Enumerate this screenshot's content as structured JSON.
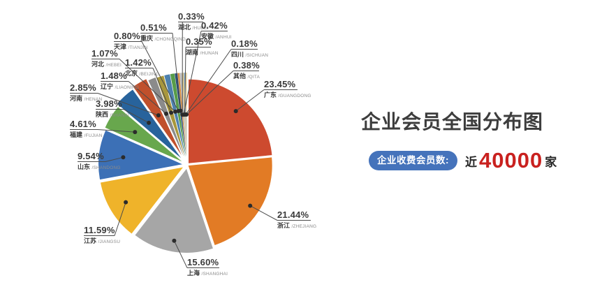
{
  "page": {
    "background": "#ffffff"
  },
  "title": "企业会员全国分布图",
  "badge": {
    "label": "企业收费会员数:",
    "prefix": "近",
    "value": "40000",
    "suffix": "家"
  },
  "chart_data": {
    "type": "pie",
    "title": "企业会员全国分布图",
    "value_unit": "percent",
    "total": 100.0,
    "direction": "clockwise",
    "start_angle": "12-oclock",
    "legend_position": "callout-labels",
    "slices": [
      {
        "name": "广东",
        "roman": "GUANGDONG",
        "value": 23.45,
        "color": "#cd4a2f"
      },
      {
        "name": "浙江",
        "roman": "ZHEJIANG",
        "value": 21.44,
        "color": "#e27b25"
      },
      {
        "name": "上海",
        "roman": "SHANGHAI",
        "value": 15.6,
        "color": "#a6a6a6"
      },
      {
        "name": "江苏",
        "roman": "JIANGSU",
        "value": 11.59,
        "color": "#efb32a"
      },
      {
        "name": "山东",
        "roman": "SHANDONG",
        "value": 9.54,
        "color": "#3c70b6"
      },
      {
        "name": "福建",
        "roman": "FUJIAN",
        "value": 4.61,
        "color": "#68a74d"
      },
      {
        "name": "陕西",
        "roman": "SHANXI",
        "value": 3.98,
        "color": "#28639c"
      },
      {
        "name": "河南",
        "roman": "HENAN",
        "value": 2.85,
        "color": "#c0502c"
      },
      {
        "name": "辽宁",
        "roman": "LIAONING",
        "value": 1.48,
        "color": "#8b8b8b"
      },
      {
        "name": "北京",
        "roman": "BEIJING",
        "value": 1.42,
        "color": "#a8973c"
      },
      {
        "name": "河北",
        "roman": "HEBEI",
        "value": 1.07,
        "color": "#4d80ad"
      },
      {
        "name": "天津",
        "roman": "TIANJIN",
        "value": 0.8,
        "color": "#579c49"
      },
      {
        "name": "重庆",
        "roman": "CHONGQING",
        "value": 0.51,
        "color": "#2a4e7d"
      },
      {
        "name": "湖北",
        "roman": "HUBEI",
        "value": 0.33,
        "color": "#d98a3a"
      },
      {
        "name": "安徽",
        "roman": "ANHUI",
        "value": 0.42,
        "color": "#bfbfbf"
      },
      {
        "name": "湖南",
        "roman": "HUNAN",
        "value": 0.35,
        "color": "#d9c78e"
      },
      {
        "name": "四川",
        "roman": "SICHUAN",
        "value": 0.18,
        "color": "#77a0c8"
      },
      {
        "name": "其他",
        "roman": "QITA",
        "value": 0.38,
        "color": "#e6d7ad"
      }
    ]
  }
}
